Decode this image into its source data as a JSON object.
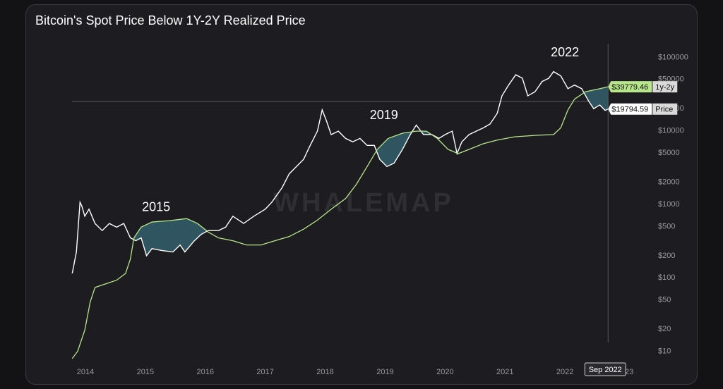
{
  "chart_data": {
    "type": "line",
    "title": "Bitcoin's Spot Price Below 1Y-2Y Realized Price",
    "watermark": "WHALEMAP",
    "log_scale": true,
    "xlim": [
      2013.6,
      2023.4
    ],
    "xticks": [
      2014,
      2015,
      2016,
      2017,
      2018,
      2019,
      2020,
      2021,
      2022,
      2023
    ],
    "ylim": [
      5,
      200000
    ],
    "yticks": [
      {
        "value": 10,
        "label": "$10"
      },
      {
        "value": 20,
        "label": "$20"
      },
      {
        "value": 50,
        "label": "$50"
      },
      {
        "value": 100,
        "label": "$100"
      },
      {
        "value": 200,
        "label": "$200"
      },
      {
        "value": 500,
        "label": "$500"
      },
      {
        "value": 1000,
        "label": "$1000"
      },
      {
        "value": 2000,
        "label": "$2000"
      },
      {
        "value": 5000,
        "label": "$5000"
      },
      {
        "value": 10000,
        "label": "$10000"
      },
      {
        "value": 20000,
        "label": "$20000"
      },
      {
        "value": 50000,
        "label": "$50000"
      },
      {
        "value": 100000,
        "label": "$100000"
      }
    ],
    "annotations": [
      {
        "text": "2015",
        "x": 2015.18,
        "y": 900
      },
      {
        "text": "2019",
        "x": 2018.98,
        "y": 16000
      },
      {
        "text": "2022",
        "x": 2022.0,
        "y": 115000
      }
    ],
    "series": [
      {
        "name": "Price",
        "color": "#ffffff",
        "x": [
          2013.78,
          2013.85,
          2013.91,
          2013.94,
          2013.99,
          2014.06,
          2014.16,
          2014.28,
          2014.4,
          2014.52,
          2014.64,
          2014.75,
          2014.84,
          2014.93,
          2015.02,
          2015.11,
          2015.28,
          2015.46,
          2015.58,
          2015.66,
          2015.81,
          2015.93,
          2016.05,
          2016.22,
          2016.34,
          2016.46,
          2016.64,
          2016.81,
          2017.0,
          2017.11,
          2017.28,
          2017.4,
          2017.52,
          2017.64,
          2017.75,
          2017.87,
          2017.95,
          2018.02,
          2018.1,
          2018.22,
          2018.34,
          2018.46,
          2018.58,
          2018.7,
          2018.82,
          2018.91,
          2019.03,
          2019.15,
          2019.29,
          2019.42,
          2019.52,
          2019.64,
          2019.78,
          2019.9,
          2020.0,
          2020.12,
          2020.2,
          2020.28,
          2020.4,
          2020.52,
          2020.64,
          2020.75,
          2020.87,
          2020.95,
          2021.06,
          2021.18,
          2021.29,
          2021.38,
          2021.5,
          2021.62,
          2021.73,
          2021.81,
          2021.93,
          2022.05,
          2022.16,
          2022.28,
          2022.4,
          2022.48,
          2022.58,
          2022.67,
          2022.72
        ],
        "values": [
          115,
          225,
          1070,
          950,
          690,
          860,
          550,
          440,
          550,
          490,
          550,
          350,
          320,
          350,
          200,
          250,
          235,
          225,
          280,
          225,
          315,
          390,
          440,
          440,
          490,
          690,
          550,
          690,
          860,
          1070,
          1680,
          2600,
          3270,
          4100,
          6340,
          9900,
          19300,
          13800,
          8900,
          9900,
          7900,
          7100,
          7900,
          6340,
          6340,
          4100,
          3270,
          3640,
          5600,
          8900,
          12000,
          8900,
          8900,
          7900,
          8900,
          9900,
          4900,
          7100,
          8900,
          9900,
          11000,
          12400,
          17300,
          30000,
          42000,
          58000,
          52000,
          30000,
          34000,
          47000,
          52000,
          64000,
          56000,
          37500,
          42000,
          37500,
          25000,
          20000,
          22500,
          19000,
          19800
        ]
      },
      {
        "name": "1y-2y",
        "color": "#b8e68a",
        "x": [
          2013.78,
          2013.87,
          2013.99,
          2014.08,
          2014.16,
          2014.34,
          2014.52,
          2014.67,
          2014.75,
          2014.81,
          2014.93,
          2015.11,
          2015.4,
          2015.69,
          2015.87,
          2016.05,
          2016.22,
          2016.46,
          2016.69,
          2016.93,
          2017.16,
          2017.4,
          2017.64,
          2017.87,
          2018.1,
          2018.34,
          2018.52,
          2018.7,
          2018.87,
          2019.05,
          2019.29,
          2019.52,
          2019.69,
          2019.87,
          2020.05,
          2020.22,
          2020.4,
          2020.64,
          2020.87,
          2021.16,
          2021.52,
          2021.81,
          2021.93,
          2022.05,
          2022.16,
          2022.34,
          2022.58,
          2022.72
        ],
        "values": [
          8,
          10,
          19.5,
          47,
          74,
          83,
          93,
          115,
          180,
          350,
          490,
          575,
          600,
          640,
          550,
          420,
          350,
          320,
          280,
          280,
          320,
          365,
          460,
          610,
          860,
          1200,
          1870,
          3270,
          5600,
          7900,
          9300,
          9900,
          9900,
          7900,
          5600,
          4900,
          5600,
          6700,
          7500,
          8300,
          8700,
          8900,
          11000,
          19300,
          27000,
          34000,
          37500,
          39800
        ]
      }
    ],
    "shade_color": "#2f5660",
    "cursor": {
      "x": 2022.72,
      "label": "Sep 2022",
      "values": [
        19794.59,
        39779.46
      ],
      "value_labels": [
        "$19794.59",
        "$39779.46"
      ]
    }
  }
}
